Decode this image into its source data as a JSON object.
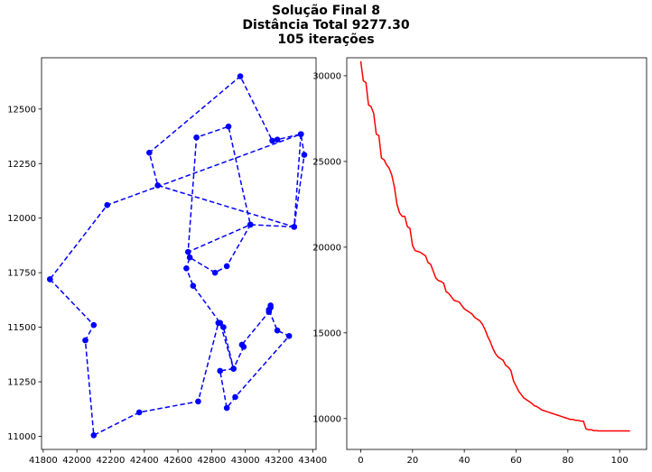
{
  "figure": {
    "title_lines": [
      "Solução Final 8",
      "Distância Total 9277.30",
      "105 iterações"
    ]
  },
  "chart_data": [
    {
      "type": "line",
      "title": "",
      "xlabel": "",
      "ylabel": "",
      "xlim": [
        41790,
        43420
      ],
      "ylim": [
        10940,
        12735
      ],
      "xticks": [
        41800,
        42000,
        42200,
        42400,
        42600,
        42800,
        43000,
        43200,
        43400
      ],
      "yticks": [
        11000,
        11250,
        11500,
        11750,
        12000,
        12250,
        12500
      ],
      "grid": false,
      "line_style": "dashed",
      "marker": "circle",
      "color": "#0000ff",
      "x": [
        41840,
        42100,
        42050,
        42100,
        42370,
        42720,
        42840,
        42870,
        42930,
        42990,
        42980,
        43140,
        43150,
        43150,
        43140,
        43190,
        43260,
        42940,
        42890,
        42850,
        42930,
        42850,
        42690,
        42650,
        42670,
        42820,
        42890,
        43030,
        42660,
        42710,
        42900,
        43030,
        43290,
        43350,
        43330,
        43190,
        43160,
        42970,
        42430,
        42480,
        43290,
        43330,
        42180,
        41840
      ],
      "y": [
        11720,
        11510,
        11440,
        11005,
        11110,
        11160,
        11520,
        11500,
        11310,
        11410,
        11420,
        11570,
        11590,
        11600,
        11580,
        11485,
        11460,
        11180,
        11130,
        11300,
        11310,
        11520,
        11690,
        11770,
        11820,
        11750,
        11780,
        11970,
        11845,
        12370,
        12420,
        11970,
        11960,
        12290,
        12385,
        12360,
        12355,
        12650,
        12300,
        12150,
        11960,
        12385,
        12060,
        11720
      ]
    },
    {
      "type": "line",
      "title": "",
      "xlabel": "",
      "ylabel": "",
      "xlim": [
        -5.4,
        110.4
      ],
      "ylim": [
        8200,
        31050
      ],
      "xticks": [
        0,
        20,
        40,
        60,
        80,
        100
      ],
      "yticks": [
        10000,
        15000,
        20000,
        25000,
        30000
      ],
      "grid": false,
      "color": "#ff0000",
      "x": [
        0,
        1,
        2,
        3,
        4,
        5,
        6,
        7,
        8,
        9,
        10,
        11,
        12,
        13,
        14,
        15,
        16,
        17,
        18,
        19,
        20,
        21,
        22,
        23,
        24,
        25,
        26,
        27,
        28,
        29,
        30,
        31,
        32,
        33,
        34,
        35,
        36,
        37,
        38,
        39,
        40,
        41,
        42,
        43,
        44,
        45,
        46,
        47,
        48,
        49,
        50,
        51,
        52,
        53,
        54,
        55,
        56,
        57,
        58,
        59,
        60,
        61,
        62,
        63,
        64,
        65,
        66,
        67,
        68,
        69,
        70,
        71,
        72,
        73,
        74,
        75,
        76,
        77,
        78,
        79,
        80,
        81,
        82,
        83,
        84,
        85,
        86,
        87,
        88,
        89,
        90,
        91,
        92,
        93,
        94,
        95,
        96,
        97,
        98,
        99,
        100,
        101,
        102,
        103,
        104
      ],
      "y": [
        30850,
        29700,
        29600,
        28300,
        28200,
        27800,
        26600,
        26500,
        25200,
        25100,
        24800,
        24600,
        24200,
        23500,
        22500,
        22000,
        21800,
        21800,
        21200,
        21100,
        20100,
        19800,
        19750,
        19700,
        19600,
        19500,
        19100,
        19000,
        18600,
        18200,
        18050,
        18000,
        17900,
        17400,
        17300,
        17100,
        16900,
        16850,
        16800,
        16600,
        16400,
        16300,
        16200,
        16100,
        15900,
        15800,
        15700,
        15500,
        15200,
        14800,
        14500,
        14100,
        13800,
        13600,
        13500,
        13400,
        13100,
        13000,
        12800,
        12200,
        11900,
        11600,
        11400,
        11200,
        11100,
        11000,
        10900,
        10750,
        10700,
        10600,
        10500,
        10450,
        10400,
        10350,
        10300,
        10250,
        10200,
        10150,
        10100,
        10050,
        10000,
        9950,
        9950,
        9900,
        9900,
        9850,
        9850,
        9400,
        9350,
        9350,
        9300,
        9300,
        9280,
        9280,
        9277,
        9277,
        9277,
        9277,
        9277,
        9277,
        9277,
        9277,
        9277,
        9277,
        9277
      ]
    }
  ]
}
